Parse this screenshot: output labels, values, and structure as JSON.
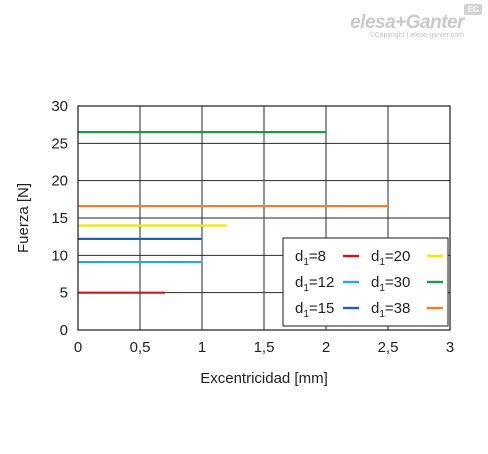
{
  "brand": {
    "name": "elesa+Ganter",
    "badge": "EG",
    "copyright": "©Copyright | elesa-ganter.com"
  },
  "chart_data": {
    "type": "line",
    "xlabel": "Excentricidad [mm]",
    "ylabel": "Fuerza [N]",
    "xlim": [
      0,
      3
    ],
    "ylim": [
      0,
      30
    ],
    "xticks": [
      0,
      0.5,
      1,
      1.5,
      2,
      2.5,
      3
    ],
    "xtick_labels": [
      "0",
      "0,5",
      "1",
      "1,5",
      "2",
      "2,5",
      "3"
    ],
    "yticks": [
      0,
      5,
      10,
      15,
      20,
      25,
      30
    ],
    "ytick_labels": [
      "0",
      "5",
      "10",
      "15",
      "20",
      "25",
      "30"
    ],
    "grid": true,
    "legend_position": "bottom-right",
    "series": [
      {
        "name": "d1=8",
        "label_main": "d",
        "label_sub": "1",
        "label_rest": "=8",
        "color": "#c8161d",
        "x": [
          0,
          0.7
        ],
        "y": [
          5,
          5
        ]
      },
      {
        "name": "d1=12",
        "label_main": "d",
        "label_sub": "1",
        "label_rest": "=12",
        "color": "#2aa7df",
        "x": [
          0,
          1
        ],
        "y": [
          9.1,
          9.1
        ]
      },
      {
        "name": "d1=15",
        "label_main": "d",
        "label_sub": "1",
        "label_rest": "=15",
        "color": "#1f63b0",
        "x": [
          0,
          1
        ],
        "y": [
          12.2,
          12.2
        ]
      },
      {
        "name": "d1=20",
        "label_main": "d",
        "label_sub": "1",
        "label_rest": "=20",
        "color": "#f2e600",
        "x": [
          0,
          1.2
        ],
        "y": [
          14,
          14
        ]
      },
      {
        "name": "d1=30",
        "label_main": "d",
        "label_sub": "1",
        "label_rest": "=30",
        "color": "#1f9a4a",
        "x": [
          0,
          2
        ],
        "y": [
          26.5,
          26.5
        ]
      },
      {
        "name": "d1=38",
        "label_main": "d",
        "label_sub": "1",
        "label_rest": "=38",
        "color": "#ee7f2d",
        "x": [
          0,
          2.5
        ],
        "y": [
          16.6,
          16.6
        ]
      }
    ],
    "legend_order": [
      "d1=8",
      "d1=20",
      "d1=12",
      "d1=30",
      "d1=15",
      "d1=38"
    ]
  }
}
